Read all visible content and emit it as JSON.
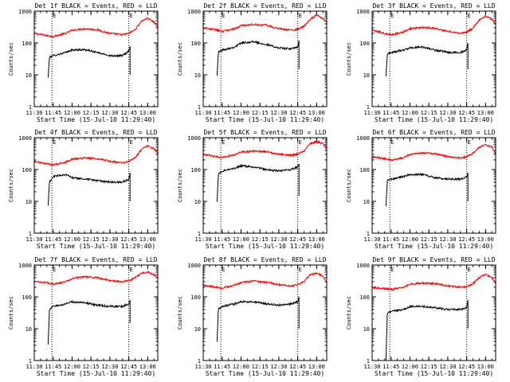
{
  "chart_data": [
    {
      "type": "line",
      "title": "Det 1f BLACK = Events, RED = LLD",
      "xlabel": "Start Time (15-Jul-10 11:29:40)",
      "ylabel": "Counts/sec",
      "yscale": "log",
      "ylim": [
        1,
        1000
      ],
      "xlim": [
        "11:30",
        "13:08"
      ],
      "x_tick_labels": [
        "11:30",
        "11:45",
        "12:00",
        "12:15",
        "12:30",
        "12:45",
        "13:00"
      ],
      "y_tick_labels": [
        "1",
        "10",
        "100",
        "1000"
      ],
      "markers": [
        "11:44",
        "12:45"
      ],
      "marker_label": "E",
      "series": [
        {
          "color": "#ff0000",
          "x": [
            "11:30",
            "11:40",
            "11:45",
            "11:55",
            "12:00",
            "12:10",
            "12:20",
            "12:30",
            "12:40",
            "12:45",
            "12:50",
            "12:55",
            "13:00",
            "13:05",
            "13:08"
          ],
          "values": [
            200,
            170,
            160,
            200,
            250,
            280,
            260,
            200,
            180,
            200,
            260,
            480,
            600,
            450,
            330
          ]
        },
        {
          "color": "#000000",
          "x": [
            "11:41",
            "11:42",
            "11:45",
            "11:55",
            "12:00",
            "12:10",
            "12:20",
            "12:30",
            "12:40",
            "12:45",
            "12:46",
            "12:46"
          ],
          "values": [
            8,
            35,
            40,
            50,
            60,
            62,
            50,
            40,
            40,
            55,
            80,
            10
          ]
        }
      ]
    },
    {
      "type": "line",
      "title": "Det 2f BLACK = Events, RED = LLD",
      "xlabel": "Start Time (15-Jul-10 11:29:40)",
      "ylabel": "Counts/sec",
      "yscale": "log",
      "ylim": [
        1,
        1000
      ],
      "xlim": [
        "11:30",
        "13:08"
      ],
      "x_tick_labels": [
        "11:30",
        "11:45",
        "12:00",
        "12:15",
        "12:30",
        "12:45",
        "13:00"
      ],
      "y_tick_labels": [
        "1",
        "10",
        "100",
        "1000"
      ],
      "markers": [
        "11:44",
        "12:45"
      ],
      "marker_label": "E",
      "series": [
        {
          "color": "#ff0000",
          "x": [
            "11:30",
            "11:40",
            "11:45",
            "11:55",
            "12:00",
            "12:10",
            "12:20",
            "12:30",
            "12:40",
            "12:45",
            "12:50",
            "12:55",
            "13:00",
            "13:05",
            "13:08"
          ],
          "values": [
            300,
            260,
            230,
            280,
            350,
            380,
            360,
            280,
            250,
            270,
            330,
            550,
            750,
            600,
            450
          ]
        },
        {
          "color": "#000000",
          "x": [
            "11:41",
            "11:42",
            "11:45",
            "11:55",
            "12:00",
            "12:10",
            "12:20",
            "12:30",
            "12:40",
            "12:45",
            "12:46",
            "12:46"
          ],
          "values": [
            10,
            50,
            60,
            75,
            100,
            110,
            90,
            70,
            65,
            75,
            120,
            15
          ]
        }
      ]
    },
    {
      "type": "line",
      "title": "Det 3f BLACK = Events, RED = LLD",
      "xlabel": "Start Time (15-Jul-10 11:29:40)",
      "ylabel": "Counts/sec",
      "yscale": "log",
      "ylim": [
        1,
        1000
      ],
      "xlim": [
        "11:30",
        "13:08"
      ],
      "x_tick_labels": [
        "11:30",
        "11:45",
        "12:00",
        "12:15",
        "12:30",
        "12:45",
        "13:00"
      ],
      "y_tick_labels": [
        "1",
        "10",
        "100",
        "1000"
      ],
      "markers": [
        "11:44",
        "12:45"
      ],
      "marker_label": "E",
      "series": [
        {
          "color": "#ff0000",
          "x": [
            "11:30",
            "11:40",
            "11:45",
            "11:55",
            "12:00",
            "12:10",
            "12:20",
            "12:30",
            "12:40",
            "12:45",
            "12:50",
            "12:55",
            "13:00",
            "13:05",
            "13:08"
          ],
          "values": [
            250,
            200,
            180,
            220,
            280,
            310,
            290,
            230,
            200,
            220,
            290,
            520,
            700,
            550,
            400
          ]
        },
        {
          "color": "#000000",
          "x": [
            "11:41",
            "11:42",
            "11:45",
            "11:55",
            "12:00",
            "12:10",
            "12:20",
            "12:30",
            "12:40",
            "12:45",
            "12:46",
            "12:46"
          ],
          "values": [
            9,
            45,
            50,
            60,
            70,
            75,
            60,
            50,
            50,
            60,
            100,
            15
          ]
        }
      ]
    },
    {
      "type": "line",
      "title": "Det 4f BLACK = Events, RED = LLD",
      "xlabel": "Start Time (15-Jul-10 11:29:40)",
      "ylabel": "Counts/sec",
      "yscale": "log",
      "ylim": [
        1,
        1000
      ],
      "xlim": [
        "11:30",
        "13:08"
      ],
      "x_tick_labels": [
        "11:30",
        "11:45",
        "12:00",
        "12:15",
        "12:30",
        "12:45",
        "13:00"
      ],
      "y_tick_labels": [
        "1",
        "10",
        "100",
        "1000"
      ],
      "markers": [
        "11:44",
        "12:45"
      ],
      "marker_label": "E",
      "series": [
        {
          "color": "#ff0000",
          "x": [
            "11:30",
            "11:40",
            "11:45",
            "11:55",
            "12:00",
            "12:10",
            "12:20",
            "12:30",
            "12:40",
            "12:45",
            "12:50",
            "12:55",
            "13:00",
            "13:05",
            "13:08"
          ],
          "values": [
            180,
            150,
            140,
            170,
            210,
            230,
            220,
            180,
            160,
            180,
            230,
            420,
            550,
            450,
            330
          ]
        },
        {
          "color": "#000000",
          "x": [
            "11:41",
            "11:42",
            "11:45",
            "11:55",
            "12:00",
            "12:10",
            "12:20",
            "12:30",
            "12:40",
            "12:45",
            "12:46",
            "12:46"
          ],
          "values": [
            7,
            40,
            60,
            70,
            55,
            50,
            45,
            40,
            40,
            50,
            80,
            10
          ]
        }
      ]
    },
    {
      "type": "line",
      "title": "Det 5f BLACK = Events, RED = LLD",
      "xlabel": "Start Time (15-Jul-10 11:29:40)",
      "ylabel": "Counts/sec",
      "yscale": "log",
      "ylim": [
        1,
        1000
      ],
      "xlim": [
        "11:30",
        "13:08"
      ],
      "x_tick_labels": [
        "11:30",
        "11:45",
        "12:00",
        "12:15",
        "12:30",
        "12:45",
        "13:00"
      ],
      "y_tick_labels": [
        "1",
        "10",
        "100",
        "1000"
      ],
      "markers": [
        "11:44",
        "12:45"
      ],
      "marker_label": "E",
      "series": [
        {
          "color": "#ff0000",
          "x": [
            "11:30",
            "11:40",
            "11:45",
            "11:55",
            "12:00",
            "12:10",
            "12:20",
            "12:30",
            "12:40",
            "12:45",
            "12:50",
            "12:55",
            "13:00",
            "13:05",
            "13:08"
          ],
          "values": [
            300,
            250,
            240,
            290,
            350,
            380,
            360,
            300,
            280,
            300,
            380,
            650,
            750,
            650,
            450
          ]
        },
        {
          "color": "#000000",
          "x": [
            "11:41",
            "11:42",
            "11:45",
            "11:55",
            "12:00",
            "12:10",
            "12:20",
            "12:30",
            "12:40",
            "12:45",
            "12:46",
            "12:46"
          ],
          "values": [
            10,
            70,
            90,
            110,
            130,
            120,
            100,
            90,
            100,
            120,
            150,
            15
          ]
        }
      ]
    },
    {
      "type": "line",
      "title": "Det 6f BLACK = Events, RED = LLD",
      "xlabel": "Start Time (15-Jul-10 11:29:40)",
      "ylabel": "Counts/sec",
      "yscale": "log",
      "ylim": [
        1,
        1000
      ],
      "xlim": [
        "11:30",
        "13:08"
      ],
      "x_tick_labels": [
        "11:30",
        "11:45",
        "12:00",
        "12:15",
        "12:30",
        "12:45",
        "13:00"
      ],
      "y_tick_labels": [
        "1",
        "10",
        "100",
        "1000"
      ],
      "markers": [
        "11:44",
        "12:45"
      ],
      "marker_label": "E",
      "series": [
        {
          "color": "#ff0000",
          "x": [
            "11:30",
            "11:40",
            "11:45",
            "11:55",
            "12:00",
            "12:10",
            "12:20",
            "12:30",
            "12:40",
            "12:45",
            "12:50",
            "12:55",
            "13:00",
            "13:05",
            "13:08"
          ],
          "values": [
            250,
            220,
            200,
            240,
            300,
            330,
            310,
            250,
            230,
            250,
            320,
            500,
            600,
            500,
            300
          ]
        },
        {
          "color": "#000000",
          "x": [
            "11:41",
            "11:42",
            "11:45",
            "11:55",
            "12:00",
            "12:10",
            "12:20",
            "12:30",
            "12:40",
            "12:45",
            "12:46",
            "12:46"
          ],
          "values": [
            7,
            45,
            50,
            60,
            70,
            70,
            55,
            50,
            50,
            60,
            80,
            10
          ]
        }
      ]
    },
    {
      "type": "line",
      "title": "Det 7f BLACK = Events, RED = LLD",
      "xlabel": "Start Time (15-Jul-10 11:29:40)",
      "ylabel": "Counts/sec",
      "yscale": "log",
      "ylim": [
        1,
        1000
      ],
      "xlim": [
        "11:30",
        "13:08"
      ],
      "x_tick_labels": [
        "11:30",
        "11:45",
        "12:00",
        "12:15",
        "12:30",
        "12:45",
        "13:00"
      ],
      "y_tick_labels": [
        "1",
        "10",
        "100",
        "1000"
      ],
      "markers": [
        "11:44",
        "12:45"
      ],
      "marker_label": "E",
      "series": [
        {
          "color": "#ff0000",
          "x": [
            "11:30",
            "11:40",
            "11:45",
            "11:55",
            "12:00",
            "12:10",
            "12:20",
            "12:30",
            "12:40",
            "12:45",
            "12:50",
            "12:55",
            "13:00",
            "13:05",
            "13:08"
          ],
          "values": [
            300,
            280,
            250,
            300,
            380,
            420,
            400,
            320,
            300,
            320,
            400,
            550,
            600,
            500,
            380
          ]
        },
        {
          "color": "#000000",
          "x": [
            "11:41",
            "11:42",
            "11:45",
            "11:55",
            "12:00",
            "12:10",
            "12:20",
            "12:30",
            "12:40",
            "12:45",
            "12:46",
            "12:46"
          ],
          "values": [
            3,
            40,
            50,
            60,
            70,
            65,
            55,
            50,
            50,
            60,
            80,
            15
          ]
        }
      ]
    },
    {
      "type": "line",
      "title": "Det 8f BLACK = Events, RED = LLD",
      "xlabel": "Start Time (15-Jul-10 11:29:40)",
      "ylabel": "Counts/sec",
      "yscale": "log",
      "ylim": [
        1,
        1000
      ],
      "xlim": [
        "11:30",
        "13:08"
      ],
      "x_tick_labels": [
        "11:30",
        "11:45",
        "12:00",
        "12:15",
        "12:30",
        "12:45",
        "13:00"
      ],
      "y_tick_labels": [
        "1",
        "10",
        "100",
        "1000"
      ],
      "markers": [
        "11:44",
        "12:45"
      ],
      "marker_label": "E",
      "series": [
        {
          "color": "#ff0000",
          "x": [
            "11:30",
            "11:40",
            "11:45",
            "11:55",
            "12:00",
            "12:10",
            "12:20",
            "12:30",
            "12:40",
            "12:45",
            "12:50",
            "12:55",
            "13:00",
            "13:05",
            "13:08"
          ],
          "values": [
            230,
            200,
            190,
            230,
            280,
            310,
            290,
            240,
            220,
            240,
            300,
            500,
            550,
            450,
            280
          ]
        },
        {
          "color": "#000000",
          "x": [
            "11:41",
            "11:42",
            "11:45",
            "11:55",
            "12:00",
            "12:10",
            "12:20",
            "12:30",
            "12:40",
            "12:45",
            "12:46",
            "12:46"
          ],
          "values": [
            4,
            40,
            50,
            60,
            70,
            70,
            60,
            55,
            60,
            70,
            100,
            10
          ]
        }
      ]
    },
    {
      "type": "line",
      "title": "Det 9f BLACK = Events, RED = LLD",
      "xlabel": "Start Time (15-Jul-10 11:29:40)",
      "ylabel": "Counts/sec",
      "yscale": "log",
      "ylim": [
        1,
        1000
      ],
      "xlim": [
        "11:30",
        "13:08"
      ],
      "x_tick_labels": [
        "11:30",
        "11:45",
        "12:00",
        "12:15",
        "12:30",
        "12:45",
        "13:00"
      ],
      "y_tick_labels": [
        "1",
        "10",
        "100",
        "1000"
      ],
      "markers": [
        "11:44",
        "12:45"
      ],
      "marker_label": "E",
      "series": [
        {
          "color": "#ff0000",
          "x": [
            "11:30",
            "11:40",
            "11:45",
            "11:55",
            "12:00",
            "12:10",
            "12:20",
            "12:30",
            "12:40",
            "12:45",
            "12:50",
            "12:55",
            "13:00",
            "13:05",
            "13:08"
          ],
          "values": [
            200,
            180,
            170,
            200,
            250,
            270,
            260,
            220,
            200,
            210,
            260,
            400,
            500,
            400,
            270
          ]
        },
        {
          "color": "#000000",
          "x": [
            "11:41",
            "11:42",
            "11:45",
            "11:55",
            "12:00",
            "12:10",
            "12:20",
            "12:30",
            "12:40",
            "12:45",
            "12:46",
            "12:46"
          ],
          "values": [
            1,
            30,
            35,
            40,
            50,
            50,
            45,
            40,
            40,
            45,
            80,
            10
          ]
        }
      ]
    }
  ]
}
